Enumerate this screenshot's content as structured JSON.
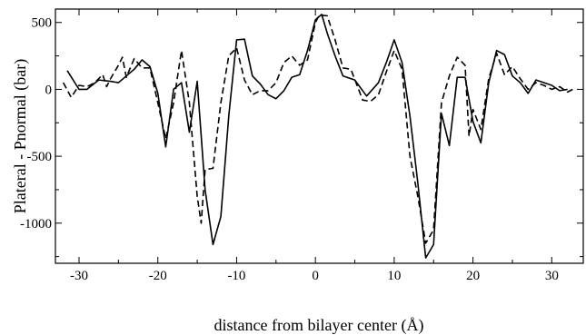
{
  "chart_data": {
    "type": "line",
    "title": "",
    "xlabel": "distance from bilayer center (Å)",
    "ylabel": "Plateral - Pnormal (bar)",
    "xlim": [
      -33,
      34
    ],
    "ylim": [
      -1300,
      600
    ],
    "xticks": [
      -30,
      -20,
      -10,
      0,
      10,
      20,
      30
    ],
    "yticks": [
      500,
      0,
      -500,
      -1000
    ],
    "grid": false,
    "legend": "none",
    "series": [
      {
        "style": "solid",
        "color": "#000000",
        "points": [
          [
            -31.5,
            140
          ],
          [
            -30,
            0
          ],
          [
            -29,
            0
          ],
          [
            -27.5,
            70
          ],
          [
            -26,
            60
          ],
          [
            -25,
            50
          ],
          [
            -24,
            100
          ],
          [
            -23,
            150
          ],
          [
            -22,
            220
          ],
          [
            -21,
            170
          ],
          [
            -20,
            -30
          ],
          [
            -19,
            -430
          ],
          [
            -18,
            0
          ],
          [
            -17,
            50
          ],
          [
            -16,
            -320
          ],
          [
            -15,
            60
          ],
          [
            -14,
            -750
          ],
          [
            -13,
            -1160
          ],
          [
            -12,
            -950
          ],
          [
            -11,
            -200
          ],
          [
            -10,
            370
          ],
          [
            -9,
            375
          ],
          [
            -8,
            100
          ],
          [
            -7,
            40
          ],
          [
            -6,
            -40
          ],
          [
            -5,
            -70
          ],
          [
            -4,
            -10
          ],
          [
            -3,
            90
          ],
          [
            -2,
            110
          ],
          [
            -1,
            290
          ],
          [
            0,
            520
          ],
          [
            0.8,
            560
          ],
          [
            1.5,
            420
          ],
          [
            2.5,
            250
          ],
          [
            3.5,
            100
          ],
          [
            5,
            70
          ],
          [
            6.5,
            -50
          ],
          [
            8,
            50
          ],
          [
            9,
            200
          ],
          [
            10,
            370
          ],
          [
            11,
            200
          ],
          [
            12,
            -200
          ],
          [
            13,
            -700
          ],
          [
            14,
            -1260
          ],
          [
            15,
            -1160
          ],
          [
            16,
            -180
          ],
          [
            17,
            -420
          ],
          [
            18,
            90
          ],
          [
            19,
            90
          ],
          [
            20,
            -240
          ],
          [
            21,
            -400
          ],
          [
            22,
            50
          ],
          [
            23,
            290
          ],
          [
            24,
            260
          ],
          [
            25,
            100
          ],
          [
            26,
            50
          ],
          [
            27,
            -30
          ],
          [
            28,
            70
          ],
          [
            29,
            50
          ],
          [
            30,
            30
          ],
          [
            31,
            -10
          ],
          [
            32,
            0
          ]
        ]
      },
      {
        "style": "dashed",
        "color": "#000000",
        "points": [
          [
            -32,
            50
          ],
          [
            -31,
            -60
          ],
          [
            -30,
            30
          ],
          [
            -29,
            20
          ],
          [
            -28,
            50
          ],
          [
            -27,
            110
          ],
          [
            -26.5,
            20
          ],
          [
            -26,
            80
          ],
          [
            -25,
            180
          ],
          [
            -24.5,
            240
          ],
          [
            -24,
            90
          ],
          [
            -23,
            230
          ],
          [
            -22,
            160
          ],
          [
            -21,
            160
          ],
          [
            -20,
            -100
          ],
          [
            -19,
            -370
          ],
          [
            -18,
            -100
          ],
          [
            -17,
            290
          ],
          [
            -16,
            -100
          ],
          [
            -15,
            -800
          ],
          [
            -14.5,
            -1000
          ],
          [
            -14,
            -600
          ],
          [
            -13,
            -590
          ],
          [
            -12,
            -100
          ],
          [
            -11,
            250
          ],
          [
            -10,
            310
          ],
          [
            -9,
            70
          ],
          [
            -8,
            -40
          ],
          [
            -7,
            -10
          ],
          [
            -6,
            -10
          ],
          [
            -5,
            50
          ],
          [
            -4,
            200
          ],
          [
            -3,
            250
          ],
          [
            -2,
            180
          ],
          [
            -1,
            220
          ],
          [
            0,
            500
          ],
          [
            0.5,
            555
          ],
          [
            1.5,
            550
          ],
          [
            2.5,
            370
          ],
          [
            3.5,
            160
          ],
          [
            4.5,
            150
          ],
          [
            6,
            -80
          ],
          [
            7,
            -90
          ],
          [
            8,
            -40
          ],
          [
            9,
            130
          ],
          [
            10,
            290
          ],
          [
            11,
            150
          ],
          [
            12,
            -500
          ],
          [
            13,
            -800
          ],
          [
            14,
            -1150
          ],
          [
            15,
            -1050
          ],
          [
            16,
            -100
          ],
          [
            17,
            100
          ],
          [
            18,
            240
          ],
          [
            19,
            180
          ],
          [
            19.5,
            -350
          ],
          [
            20,
            -150
          ],
          [
            21,
            -300
          ],
          [
            22,
            80
          ],
          [
            23,
            270
          ],
          [
            24,
            110
          ],
          [
            25,
            170
          ],
          [
            26,
            80
          ],
          [
            27,
            0
          ],
          [
            28,
            50
          ],
          [
            29,
            30
          ],
          [
            30,
            0
          ],
          [
            31,
            20
          ],
          [
            32,
            -20
          ],
          [
            33,
            10
          ]
        ]
      }
    ]
  }
}
